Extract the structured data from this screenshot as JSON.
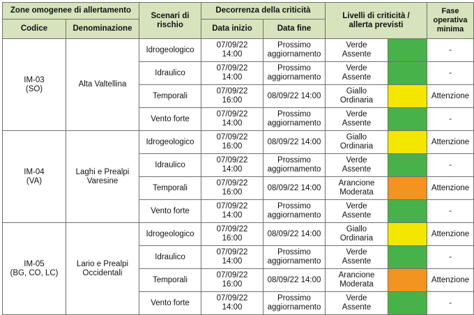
{
  "headers": {
    "zones_group": "Zone omogenee di allertamento",
    "codice": "Codice",
    "denominazione": "Denominazione",
    "scenari": "Scenari di rischio",
    "decorrenza_group": "Decorrenza della criticità",
    "data_inizio": "Data inizio",
    "data_fine": "Data fine",
    "livelli": "Livelli di criticità / allerta previsti",
    "fase": "Fase operativa minima"
  },
  "colors": {
    "header_bg": "#d7e3bd",
    "verde": "#47b249",
    "giallo": "#f3e600",
    "arancione": "#f39320"
  },
  "zones": [
    {
      "codice": "IM-03",
      "sigla": "(SO)",
      "denominazione": "Alta Valtellina",
      "rows": [
        {
          "scenario": "Idrogeologico",
          "inizio": "07/09/22 14:00",
          "fine": "Prossimo aggiornamento",
          "livello": "Verde Assente",
          "color": "verde",
          "fase": "-"
        },
        {
          "scenario": "Idraulico",
          "inizio": "07/09/22 14:00",
          "fine": "Prossimo aggiornamento",
          "livello": "Verde Assente",
          "color": "verde",
          "fase": "-"
        },
        {
          "scenario": "Temporali",
          "inizio": "07/09/22 16:00",
          "fine": "08/09/22 14:00",
          "livello": "Giallo Ordinaria",
          "color": "giallo",
          "fase": "Attenzione"
        },
        {
          "scenario": "Vento forte",
          "inizio": "07/09/22 14:00",
          "fine": "Prossimo aggiornamento",
          "livello": "Verde Assente",
          "color": "verde",
          "fase": "-"
        }
      ]
    },
    {
      "codice": "IM-04",
      "sigla": "(VA)",
      "denominazione": "Laghi e Prealpi Varesine",
      "rows": [
        {
          "scenario": "Idrogeologico",
          "inizio": "07/09/22 16:00",
          "fine": "08/09/22 14:00",
          "livello": "Giallo Ordinaria",
          "color": "giallo",
          "fase": "Attenzione"
        },
        {
          "scenario": "Idraulico",
          "inizio": "07/09/22 14:00",
          "fine": "Prossimo aggiornamento",
          "livello": "Verde Assente",
          "color": "verde",
          "fase": "-"
        },
        {
          "scenario": "Temporali",
          "inizio": "07/09/22 16:00",
          "fine": "08/09/22 14:00",
          "livello": "Arancione Moderata",
          "color": "arancione",
          "fase": "Attenzione"
        },
        {
          "scenario": "Vento forte",
          "inizio": "07/09/22 14:00",
          "fine": "Prossimo aggiornamento",
          "livello": "Verde Assente",
          "color": "verde",
          "fase": "-"
        }
      ]
    },
    {
      "codice": "IM-05",
      "sigla": "(BG, CO, LC)",
      "denominazione": "Lario e Prealpi Occidentali",
      "rows": [
        {
          "scenario": "Idrogeologico",
          "inizio": "07/09/22 16:00",
          "fine": "08/09/22 14:00",
          "livello": "Giallo Ordinaria",
          "color": "giallo",
          "fase": "Attenzione"
        },
        {
          "scenario": "Idraulico",
          "inizio": "07/09/22 14:00",
          "fine": "Prossimo aggiornamento",
          "livello": "Verde Assente",
          "color": "verde",
          "fase": "-"
        },
        {
          "scenario": "Temporali",
          "inizio": "07/09/22 16:00",
          "fine": "08/09/22 14:00",
          "livello": "Arancione Moderata",
          "color": "arancione",
          "fase": "Attenzione"
        },
        {
          "scenario": "Vento forte",
          "inizio": "07/09/22 14:00",
          "fine": "Prossimo aggiornamento",
          "livello": "Verde Assente",
          "color": "verde",
          "fase": "-"
        }
      ]
    }
  ]
}
